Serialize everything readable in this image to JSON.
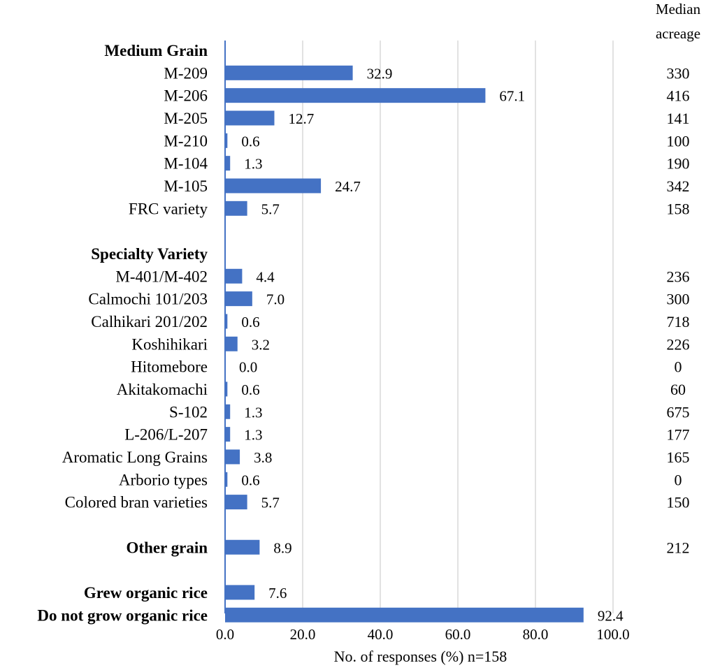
{
  "chart_data": {
    "type": "bar",
    "orientation": "horizontal",
    "xlabel": "No. of responses (%) n=158",
    "xlim": [
      0,
      100
    ],
    "xticks": [
      "0.0",
      "20.0",
      "40.0",
      "60.0",
      "80.0",
      "100.0"
    ],
    "grid": "vertical",
    "bar_color": "#4472C4",
    "median_header": [
      "Median",
      "acreage"
    ],
    "rows": [
      {
        "label": "Medium Grain",
        "header": true
      },
      {
        "label": "M-209",
        "value": 32.9,
        "value_label": "32.9",
        "median": "330"
      },
      {
        "label": "M-206",
        "value": 67.1,
        "value_label": "67.1",
        "median": "416"
      },
      {
        "label": "M-205",
        "value": 12.7,
        "value_label": "12.7",
        "median": "141"
      },
      {
        "label": "M-210",
        "value": 0.6,
        "value_label": "0.6",
        "median": "100"
      },
      {
        "label": "M-104",
        "value": 1.3,
        "value_label": "1.3",
        "median": "190"
      },
      {
        "label": "M-105",
        "value": 24.7,
        "value_label": "24.7",
        "median": "342"
      },
      {
        "label": "FRC variety",
        "value": 5.7,
        "value_label": "5.7",
        "median": "158"
      },
      {
        "spacer": true
      },
      {
        "label": "Specialty Variety",
        "header": true
      },
      {
        "label": "M-401/M-402",
        "value": 4.4,
        "value_label": "4.4",
        "median": "236"
      },
      {
        "label": "Calmochi 101/203",
        "value": 7.0,
        "value_label": "7.0",
        "median": "300"
      },
      {
        "label": "Calhikari 201/202",
        "value": 0.6,
        "value_label": "0.6",
        "median": "718"
      },
      {
        "label": "Koshihikari",
        "value": 3.2,
        "value_label": "3.2",
        "median": "226"
      },
      {
        "label": "Hitomebore",
        "value": 0.0,
        "value_label": "0.0",
        "median": "0"
      },
      {
        "label": "Akitakomachi",
        "value": 0.6,
        "value_label": "0.6",
        "median": "60"
      },
      {
        "label": "S-102",
        "value": 1.3,
        "value_label": "1.3",
        "median": "675"
      },
      {
        "label": "L-206/L-207",
        "value": 1.3,
        "value_label": "1.3",
        "median": "177"
      },
      {
        "label": "Aromatic Long Grains",
        "value": 3.8,
        "value_label": "3.8",
        "median": "165"
      },
      {
        "label": "Arborio types",
        "value": 0.6,
        "value_label": "0.6",
        "median": "0"
      },
      {
        "label": "Colored bran varieties",
        "value": 5.7,
        "value_label": "5.7",
        "median": "150"
      },
      {
        "spacer": true
      },
      {
        "label": "Other grain",
        "value": 8.9,
        "value_label": "8.9",
        "median": "212",
        "bold": true
      },
      {
        "spacer": true
      },
      {
        "label": "Grew organic rice",
        "value": 7.6,
        "value_label": "7.6",
        "bold": true
      },
      {
        "label": "Do not grow organic rice",
        "value": 92.4,
        "value_label": "92.4",
        "bold": true
      }
    ]
  }
}
